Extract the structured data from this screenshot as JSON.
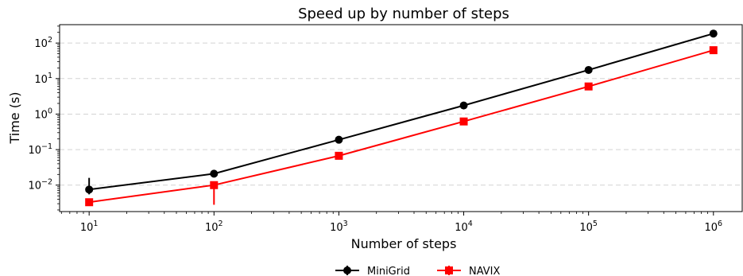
{
  "chart_data": {
    "type": "line",
    "title": "Speed up by number of steps",
    "xlabel": "Number of steps",
    "ylabel": "Time (s)",
    "xscale": "log",
    "yscale": "log",
    "x": [
      10,
      100,
      1000,
      10000,
      100000,
      1000000
    ],
    "xtick_labels": [
      {
        "base": "10",
        "exp": "1"
      },
      {
        "base": "10",
        "exp": "2"
      },
      {
        "base": "10",
        "exp": "3"
      },
      {
        "base": "10",
        "exp": "4"
      },
      {
        "base": "10",
        "exp": "5"
      },
      {
        "base": "10",
        "exp": "6"
      }
    ],
    "ytick_labels": [
      {
        "base": "10",
        "exp": "−2",
        "value": 0.01
      },
      {
        "base": "10",
        "exp": "−1",
        "value": 0.1
      },
      {
        "base": "10",
        "exp": "0",
        "value": 1
      },
      {
        "base": "10",
        "exp": "1",
        "value": 10
      },
      {
        "base": "10",
        "exp": "2",
        "value": 100
      }
    ],
    "xlim": [
      5.8,
      1700000
    ],
    "ylim": [
      0.0018,
      330
    ],
    "grid": "horizontal-dashed",
    "legend_position": "bottom-center",
    "series": [
      {
        "name": "MiniGrid",
        "color": "#000000",
        "marker": "circle",
        "values": [
          0.0075,
          0.021,
          0.19,
          1.75,
          17.5,
          185
        ],
        "err_low": [
          0.0055,
          0.0,
          0.0,
          0.0,
          0.0,
          0.0
        ],
        "err_high": [
          0.016,
          0.0,
          0.0,
          0.0,
          0.0,
          0.0
        ]
      },
      {
        "name": "NAVIX",
        "color": "#ff0000",
        "marker": "square",
        "values": [
          0.0033,
          0.01,
          0.067,
          0.62,
          6.0,
          63
        ],
        "err_low": [
          0.0,
          0.0028,
          0.0,
          0.0,
          0.0,
          0.0
        ],
        "err_high": [
          0.0,
          0.0,
          0.0,
          0.0,
          0.0,
          0.0
        ]
      }
    ]
  }
}
